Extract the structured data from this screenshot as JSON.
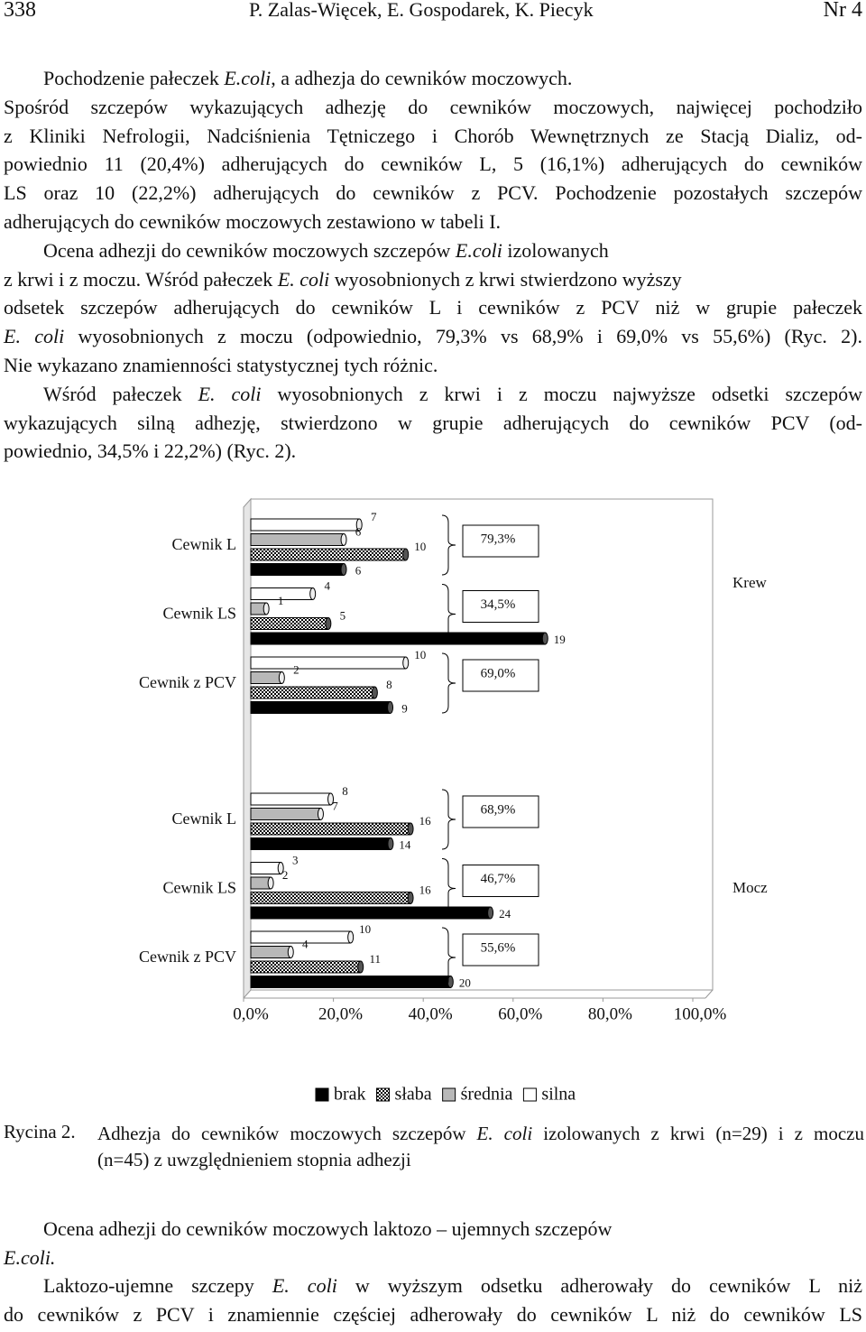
{
  "header": {
    "page": "338",
    "authors": "P. Zalas-Więcek, E. Gospodarek, K. Piecyk",
    "issue": "Nr 4"
  },
  "text_before": [
    {
      "lines": [
        [
          "Pochodzenie pałeczek ",
          {
            "italic": "E.coli"
          },
          ", a adhezja do cewników moczowych."
        ],
        "Spośród szczepów wykazujących adhezję do cewników moczowych, najwięcej pochodziło",
        "z Kliniki Nefrologii, Nadciśnienia Tętniczego i Chorób Wewnętrznych ze Stacją Dializ, od-",
        "powiednio 11 (20,4%) adherujących do cewników L, 5 (16,1%) adherujących do cewników",
        "LS oraz 10 (22,2%) adherujących do cewników z PCV. Pochodzenie pozostałych szczepów",
        "adherujących do cewników moczowych zestawiono w  tabeli I."
      ]
    },
    {
      "lines": [
        [
          "Ocena adhezji do cewników moczowych szczepów ",
          {
            "italic": "E.coli"
          },
          " izolowanych"
        ],
        [
          "z krwi i z moczu. Wśród pałeczek ",
          {
            "italic": "E. coli"
          },
          " wyosobnionych z krwi stwierdzono wyższy"
        ],
        "odsetek szczepów adherujących do cewników L i cewników z PCV niż w grupie pałeczek",
        [
          {
            "italic": "E. coli"
          },
          " wyosobnionych z moczu (odpowiednio, 79,3% vs 68,9% i 69,0% vs 55,6%) (Ryc. 2)."
        ],
        "Nie wykazano znamienności statystycznej tych różnic."
      ]
    },
    {
      "lines": [
        [
          "Wśród pałeczek ",
          {
            "italic": "E. coli"
          },
          " wyosobnionych z krwi i z moczu najwyższe odsetki szczepów"
        ],
        "wykazujących silną adhezję, stwierdzono w grupie adherujących do cewników PCV (od-",
        "powiednio, 34,5% i 22,2%) (Ryc. 2)."
      ]
    }
  ],
  "chart_data": {
    "type": "bar",
    "orientation": "horizontal",
    "categories": [
      "Cewnik L",
      "Cewnik LS",
      "Cewnik z PCV",
      "Cewnik L",
      "Cewnik LS",
      "Cewnik z PCV"
    ],
    "groups": [
      "Krew",
      "Mocz"
    ],
    "series": [
      {
        "name": "brak",
        "color": "#000000",
        "values": [
          6,
          19,
          9,
          14,
          24,
          20
        ]
      },
      {
        "name": "słaba",
        "color": "#000000",
        "pattern": "checker",
        "values": [
          10,
          5,
          8,
          16,
          16,
          11
        ]
      },
      {
        "name": "średnia",
        "color": "#b8b8b8",
        "values": [
          6,
          1,
          2,
          7,
          2,
          4
        ]
      },
      {
        "name": "silna",
        "color": "#ffffff",
        "values": [
          7,
          4,
          10,
          8,
          3,
          10
        ]
      }
    ],
    "annotations": [
      "79,3%",
      "34,5%",
      "69,0%",
      "68,9%",
      "46,7%",
      "55,6%"
    ],
    "xlim": [
      0,
      100
    ],
    "xticks": [
      {
        "value": 0,
        "label": "0,0%"
      },
      {
        "value": 20,
        "label": "20,0%"
      },
      {
        "value": 40,
        "label": "40,0%"
      },
      {
        "value": 60,
        "label": "60,0%"
      },
      {
        "value": 80,
        "label": "80,0%"
      },
      {
        "value": 100,
        "label": "100,0%"
      }
    ],
    "legend": "bottom"
  },
  "caption": {
    "label": "Rycina 2.",
    "lines": [
      [
        "Adhezja do cewników moczowych szczepów ",
        {
          "italic": "E. coli"
        },
        " izolowanych z krwi (n=29) i z moczu"
      ],
      "(n=45) z uwzględnieniem stopnia adhezji"
    ]
  },
  "text_after": [
    {
      "lines": [
        "Ocena adhezji do cewników moczowych laktozo – ujemnych szczepów",
        [
          {
            "italic": "E.coli."
          }
        ]
      ]
    },
    {
      "lines": [
        [
          "Laktozo-ujemne szczepy ",
          {
            "italic": "E. coli"
          },
          " w wyższym odsetku adherowały do cewników L niż"
        ],
        "do cewników z PCV i znamiennie częściej adherowały do cewników L niż do cewników LS"
      ]
    }
  ]
}
